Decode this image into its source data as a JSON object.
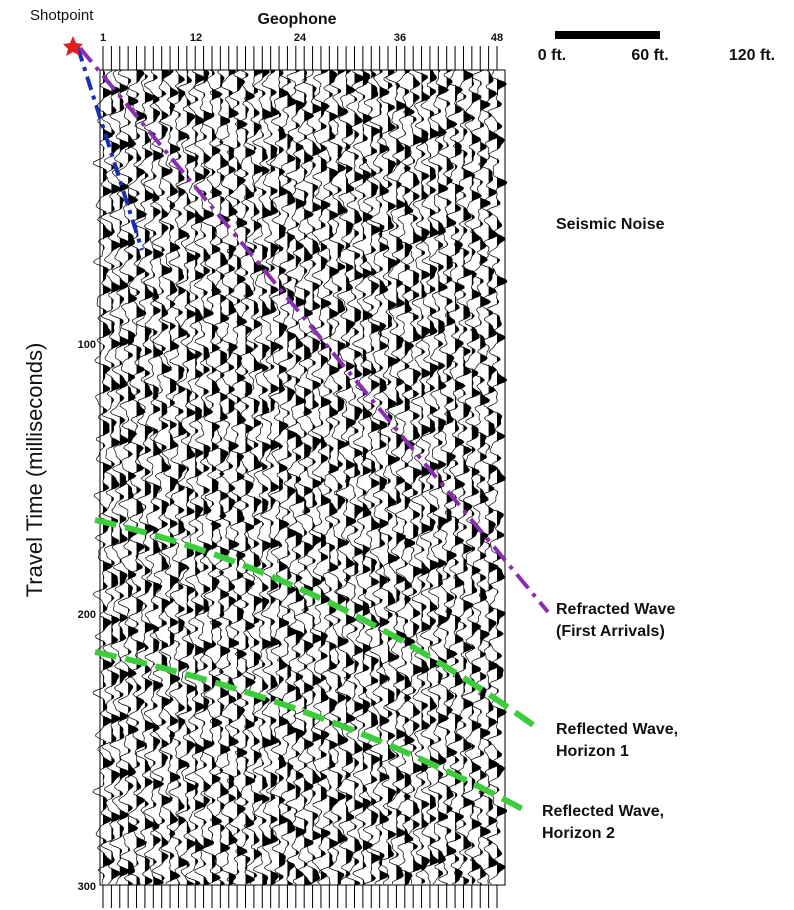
{
  "header": {
    "shotpoint": "Shotpoint",
    "geophone": "Geophone"
  },
  "geophone_ticks": [
    "1",
    "12",
    "24",
    "36",
    "48"
  ],
  "time_axis": {
    "label": "Travel Time (milliseconds)",
    "ticks": [
      "100",
      "200",
      "300"
    ]
  },
  "scale_bar": {
    "labels": [
      "0 ft.",
      "60 ft.",
      "120 ft."
    ]
  },
  "annotations": {
    "noise": "Seismic Noise",
    "refracted": [
      "Refracted Wave",
      "(First Arrivals)"
    ],
    "horizon1": [
      "Reflected Wave,",
      "Horizon 1"
    ],
    "horizon2": [
      "Reflected Wave,",
      "Horizon 2"
    ]
  }
}
